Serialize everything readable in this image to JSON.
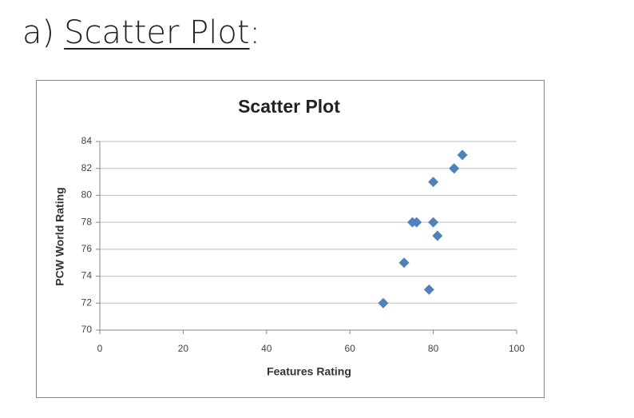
{
  "heading": {
    "prefix": "a)",
    "link": "Scatter Plot",
    "suffix": ":"
  },
  "chart_data": {
    "type": "scatter",
    "title": "Scatter Plot",
    "xlabel": "Features Rating",
    "ylabel": "PCW World Rating",
    "color": "#4f81bd",
    "marker": "diamond",
    "x": [
      68,
      73,
      75,
      76,
      79,
      80,
      80,
      81,
      85,
      87
    ],
    "y": [
      72,
      75,
      78,
      78,
      73,
      78,
      81,
      77,
      82,
      83
    ],
    "xlim": [
      0,
      100
    ],
    "xticks": [
      0,
      20,
      40,
      60,
      80,
      100
    ],
    "ylim": [
      70,
      84
    ],
    "yticks": [
      70,
      72,
      74,
      76,
      78,
      80,
      82,
      84
    ],
    "grid": true
  }
}
